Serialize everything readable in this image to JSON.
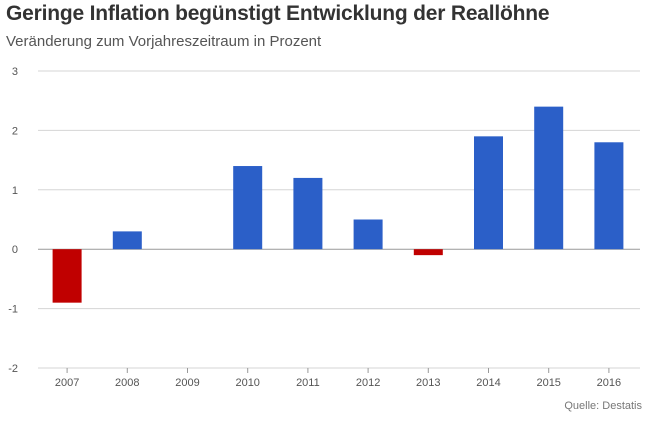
{
  "header": {
    "title": "Geringe Inflation begünstigt Entwicklung der Reallöhne",
    "subtitle": "Veränderung zum Vorjahreszeitraum in Prozent"
  },
  "footer": {
    "source": "Quelle: Destatis"
  },
  "chart_data": {
    "type": "bar",
    "categories": [
      "2007",
      "2008",
      "2009",
      "2010",
      "2011",
      "2012",
      "2013",
      "2014",
      "2015",
      "2016"
    ],
    "values": [
      -0.9,
      0.3,
      0,
      1.4,
      1.2,
      0.5,
      -0.1,
      1.9,
      2.4,
      1.8
    ],
    "ylim": [
      -2,
      3
    ],
    "yticks": [
      3,
      2,
      1,
      0,
      -1,
      -2
    ],
    "ytick_labels": [
      "3",
      "2",
      "1",
      "0",
      "-1",
      "-2"
    ],
    "grid": true,
    "colors": {
      "positive": "#2b5fc8",
      "negative": "#c00000",
      "grid": "#d5d5d5",
      "axis": "#999999"
    }
  }
}
